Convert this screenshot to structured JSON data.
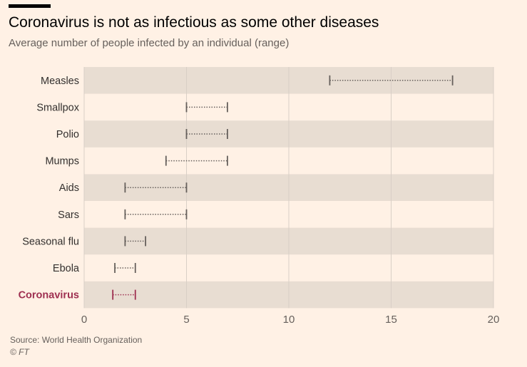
{
  "header": {
    "title": "Coronavirus is not as infectious as some other diseases",
    "subtitle": "Average number of people infected by an individual (range)"
  },
  "footer": {
    "source": "Source: World Health Organization",
    "copyright": "© FT"
  },
  "colors": {
    "background": "#fff1e5",
    "band": "#e8ddd2",
    "range_line": "#66605c",
    "highlight": "#9e2f50"
  },
  "chart_data": {
    "type": "range",
    "categories": [
      "Measles",
      "Smallpox",
      "Polio",
      "Mumps",
      "Aids",
      "Sars",
      "Seasonal flu",
      "Ebola",
      "Coronavirus"
    ],
    "series": [
      {
        "values": [
          [
            12,
            18
          ],
          [
            5,
            7
          ],
          [
            5,
            7
          ],
          [
            4,
            7
          ],
          [
            2,
            5
          ],
          [
            2,
            5
          ],
          [
            2,
            3
          ],
          [
            1.5,
            2.5
          ],
          [
            1.4,
            2.5
          ]
        ]
      }
    ],
    "highlight_category": "Coronavirus",
    "xlim": [
      0,
      20
    ],
    "xticks": [
      "0",
      "5",
      "10",
      "15",
      "20"
    ],
    "grid": true
  }
}
